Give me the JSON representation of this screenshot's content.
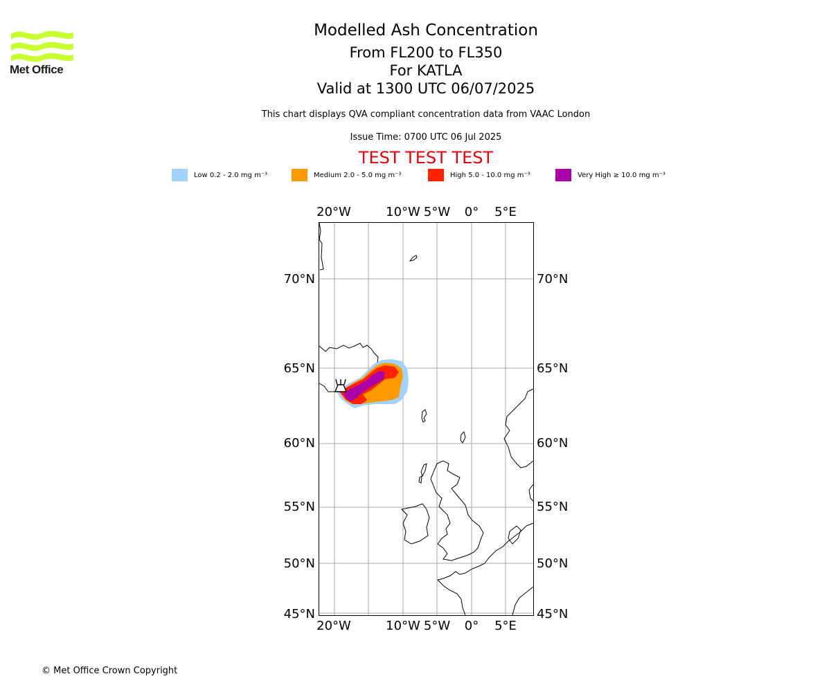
{
  "logo": {
    "text": "Met Office",
    "color": "#c8ff2e"
  },
  "title": "Modelled Ash Concentration",
  "levels": "From FL200 to FL350",
  "volcano": "For KATLA",
  "valid": "Valid at 1300 UTC 06/07/2025",
  "note": "This chart displays QVA compliant concentration data from VAAC London",
  "issue_time": "Issue Time: 0700 UTC 06 Jul 2025",
  "test_banner": "TEST TEST TEST",
  "legend": [
    {
      "label": "Low 0.2 - 2.0 mg m⁻³",
      "color": "#a2d2ff"
    },
    {
      "label": "Medium 2.0 - 5.0 mg m⁻³",
      "color": "#ff9900"
    },
    {
      "label": "High 5.0 - 10.0 mg m⁻³",
      "color": "#ff2200"
    },
    {
      "label": "Very High  ≥  10.0 mg m⁻³",
      "color": "#aa00aa"
    }
  ],
  "map": {
    "lon_ticks": [
      "20°W",
      "10°W",
      "5°W",
      "0°",
      "5°E"
    ],
    "lat_ticks": [
      "70°N",
      "65°N",
      "60°N",
      "55°N",
      "50°N",
      "45°N"
    ],
    "gridline_color": "#aaaaaa"
  },
  "copyright": "© Met Office Crown Copyright"
}
